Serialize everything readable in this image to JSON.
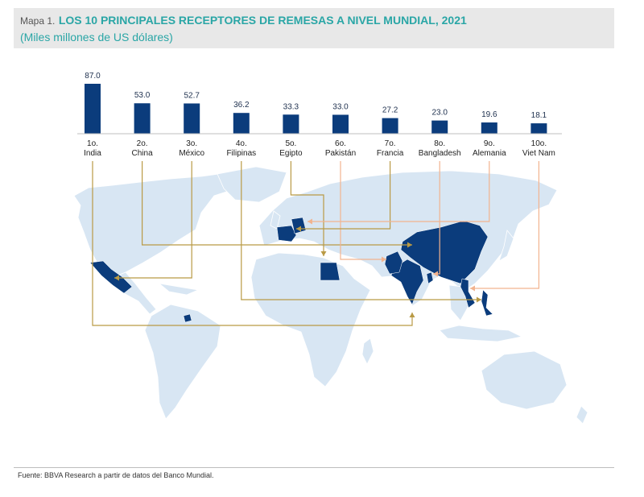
{
  "header": {
    "prefix": "Mapa 1.",
    "title": "LOS 10 PRINCIPALES RECEPTORES DE REMESAS A NIVEL MUNDIAL, 2021",
    "subtitle": "(Miles millones de US dólares)"
  },
  "colors": {
    "bar": "#0b3c7c",
    "country": "#0b3c7c",
    "land": "#d8e6f3",
    "connector_gold": "#b99a45",
    "connector_salmon": "#f2b38f",
    "header_bg": "#e8e8e8",
    "title": "#2aa6a6"
  },
  "chart_data": {
    "type": "bar",
    "title": "LOS 10 PRINCIPALES RECEPTORES DE REMESAS A NIVEL MUNDIAL, 2021",
    "ylabel": "",
    "xlabel": "",
    "ranks": [
      "1o.",
      "2o.",
      "3o.",
      "4o.",
      "5o.",
      "6o.",
      "7o.",
      "8o.",
      "9o.",
      "10o."
    ],
    "categories": [
      "India",
      "China",
      "México",
      "Filipinas",
      "Egipto",
      "Pakistán",
      "Francia",
      "Bangladesh",
      "Alemania",
      "Viet Nam"
    ],
    "values": [
      87.0,
      53.0,
      52.7,
      36.2,
      33.3,
      33.0,
      27.2,
      23.0,
      19.6,
      18.1
    ],
    "value_labels": [
      "87.0",
      "53.0",
      "52.7",
      "36.2",
      "33.3",
      "33.0",
      "27.2",
      "23.0",
      "19.6",
      "18.1"
    ],
    "ylim": [
      0,
      87.0
    ],
    "grid": false,
    "map": "world map with top-10 recipient countries highlighted and connected to their bars"
  },
  "source": "Fuente: BBVA Research a partir de datos del Banco Mundial."
}
